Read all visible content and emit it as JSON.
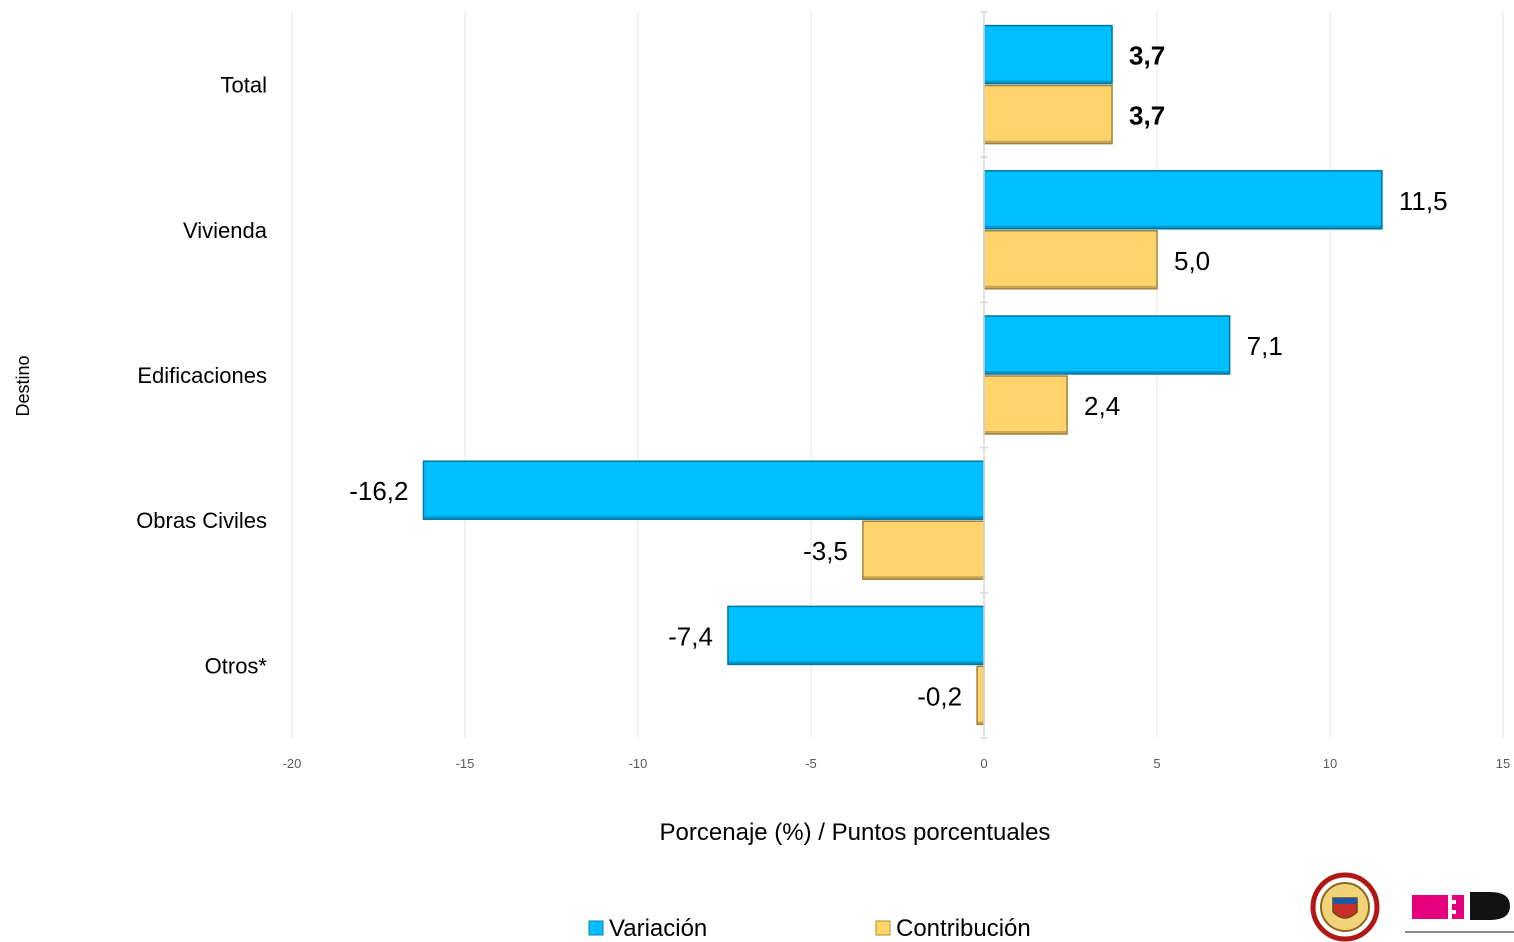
{
  "chart_data": {
    "type": "bar",
    "orientation": "horizontal",
    "categories": [
      "Total",
      "Vivienda",
      "Edificaciones",
      "Obras Civiles",
      "Otros*"
    ],
    "series": [
      {
        "name": "Variación",
        "values": [
          3.7,
          11.5,
          7.1,
          -16.2,
          -7.4
        ],
        "labels": [
          "3,7",
          "11,5",
          "7,1",
          "-16,2",
          "-7,4"
        ],
        "color": "#00BFFF"
      },
      {
        "name": "Contribución",
        "values": [
          3.7,
          5.0,
          2.4,
          -3.5,
          -0.2
        ],
        "labels": [
          "3,7",
          "5,0",
          "2,4",
          "-3,5",
          "-0,2"
        ],
        "color": "#FFD46B"
      }
    ],
    "bold_category": "Total",
    "xlabel": "Porcenaje (%) / Puntos porcentuales",
    "ylabel": "Destino",
    "xlim": [
      -20,
      15
    ],
    "xticks": [
      -20,
      -15,
      -10,
      -5,
      0,
      5,
      10,
      15
    ],
    "grid": true,
    "legend_position": "bottom"
  },
  "colors": {
    "variacion": "#00BFFF",
    "contribucion": "#FFD46B",
    "grid": "#E6E6E6"
  },
  "logos": [
    "colombia-coat-of-arms",
    "dane-logo"
  ]
}
